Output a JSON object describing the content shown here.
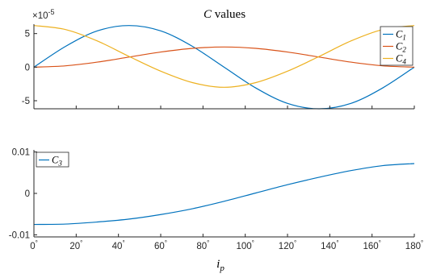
{
  "chart_data": [
    {
      "type": "line",
      "title_symbol": "C",
      "title_rest": " values",
      "exponent_label": "×10",
      "exponent_power": "-5",
      "xlim": [
        0,
        180
      ],
      "ylim": [
        -6.2,
        6.4
      ],
      "yticks": [
        -5,
        0,
        5
      ],
      "ytick_labels": [
        "-5",
        "0",
        "5"
      ],
      "grid": false,
      "legend_position": "top-right",
      "x": [
        0,
        15,
        30,
        45,
        60,
        75,
        90,
        105,
        120,
        135,
        150,
        165,
        180
      ],
      "series": [
        {
          "name": "C",
          "sub": "1",
          "color": "#0072BD",
          "values": [
            0,
            3.1,
            5.4,
            6.2,
            5.4,
            3.1,
            0,
            -3.1,
            -5.4,
            -6.2,
            -5.4,
            -3.1,
            0
          ]
        },
        {
          "name": "C",
          "sub": "2",
          "color": "#D95319",
          "values": [
            0,
            0.2,
            0.75,
            1.5,
            2.25,
            2.8,
            3.0,
            2.8,
            2.25,
            1.5,
            0.75,
            0.2,
            0
          ]
        },
        {
          "name": "C",
          "sub": "4",
          "color": "#EDB120",
          "values": [
            6.2,
            5.6,
            3.9,
            1.6,
            -0.6,
            -2.3,
            -3.0,
            -2.3,
            -0.6,
            1.6,
            3.9,
            5.6,
            6.2
          ]
        }
      ]
    },
    {
      "type": "line",
      "xlim": [
        0,
        180
      ],
      "ylim": [
        -0.0105,
        0.0105
      ],
      "yticks": [
        -0.01,
        0,
        0.01
      ],
      "ytick_labels": [
        "-0.01",
        "0",
        "0.01"
      ],
      "xticks": [
        0,
        20,
        40,
        60,
        80,
        100,
        120,
        140,
        160,
        180
      ],
      "xtick_labels": [
        "0",
        "20",
        "40",
        "60",
        "80",
        "100",
        "120",
        "140",
        "160",
        "180"
      ],
      "xtick_unit": "°",
      "xlabel_base": "i",
      "xlabel_sub": "p",
      "grid": false,
      "legend_position": "top-left",
      "x": [
        0,
        15,
        30,
        45,
        60,
        75,
        90,
        105,
        120,
        135,
        150,
        165,
        180
      ],
      "series": [
        {
          "name": "C",
          "sub": "3",
          "color": "#0072BD",
          "values": [
            -0.0075,
            -0.0074,
            -0.0069,
            -0.0062,
            -0.0051,
            -0.0037,
            -0.0019,
            0.0001,
            0.0021,
            0.0039,
            0.0055,
            0.0067,
            0.0072
          ]
        }
      ]
    }
  ]
}
